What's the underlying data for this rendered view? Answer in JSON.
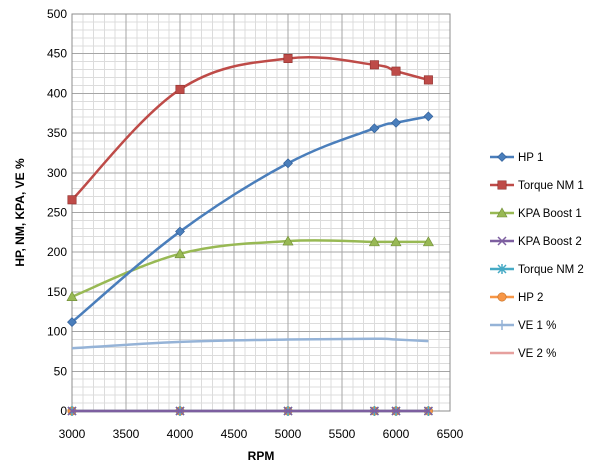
{
  "chart_data": {
    "type": "line",
    "title": "",
    "xlabel": "RPM",
    "ylabel": "HP, NM, KPA, VE %",
    "xlim": [
      3000,
      6500
    ],
    "ylim": [
      0,
      500
    ],
    "x_ticks": [
      3000,
      3500,
      4000,
      4500,
      5000,
      5500,
      6000,
      6500
    ],
    "y_ticks": [
      0,
      50,
      100,
      150,
      200,
      250,
      300,
      350,
      400,
      450,
      500
    ],
    "x_minor_step": 100,
    "y_minor_step": 10,
    "grid": true,
    "legend_position": "right",
    "series": [
      {
        "name": "HP 1",
        "color": "#4a7ebb",
        "marker": "diamond",
        "x": [
          3000,
          4000,
          5000,
          5800,
          6000,
          6300
        ],
        "y": [
          112,
          226,
          312,
          356,
          363,
          371
        ]
      },
      {
        "name": "Torque NM 1",
        "color": "#be4b48",
        "marker": "square",
        "x": [
          3000,
          4000,
          5000,
          5800,
          6000,
          6300
        ],
        "y": [
          266,
          405,
          444,
          436,
          428,
          417
        ]
      },
      {
        "name": "KPA Boost 1",
        "color": "#98b954",
        "marker": "triangle",
        "x": [
          3000,
          4000,
          5000,
          5800,
          6000,
          6300
        ],
        "y": [
          144,
          198,
          214,
          213,
          213,
          213
        ]
      },
      {
        "name": "KPA Boost 2",
        "color": "#7d5fa0",
        "marker": "x",
        "x": [
          3000,
          4000,
          5000,
          5800,
          6000,
          6300
        ],
        "y": [
          0,
          0,
          0,
          0,
          0,
          0
        ]
      },
      {
        "name": "Torque NM 2",
        "color": "#46aac5",
        "marker": "star",
        "x": [
          3000,
          4000,
          5000,
          5800,
          6000,
          6300
        ],
        "y": [
          0,
          0,
          0,
          0,
          0,
          0
        ]
      },
      {
        "name": "HP 2",
        "color": "#f79646",
        "marker": "circle",
        "x": [
          3000,
          4000,
          5000,
          5800,
          6000,
          6300
        ],
        "y": [
          0,
          0,
          0,
          0,
          0,
          0
        ]
      },
      {
        "name": "VE 1 %",
        "color": "#95b3d7",
        "marker": "plus",
        "x": [
          3000,
          4000,
          5000,
          5800,
          6000,
          6300
        ],
        "y": [
          79,
          87,
          90,
          91,
          90,
          88
        ]
      },
      {
        "name": "VE 2 %",
        "color": "#e6a09e",
        "marker": "dash",
        "x": [
          3000,
          4000,
          5000,
          5800,
          6000,
          6300
        ],
        "y": [
          0,
          0,
          0,
          0,
          0,
          0
        ]
      }
    ]
  }
}
